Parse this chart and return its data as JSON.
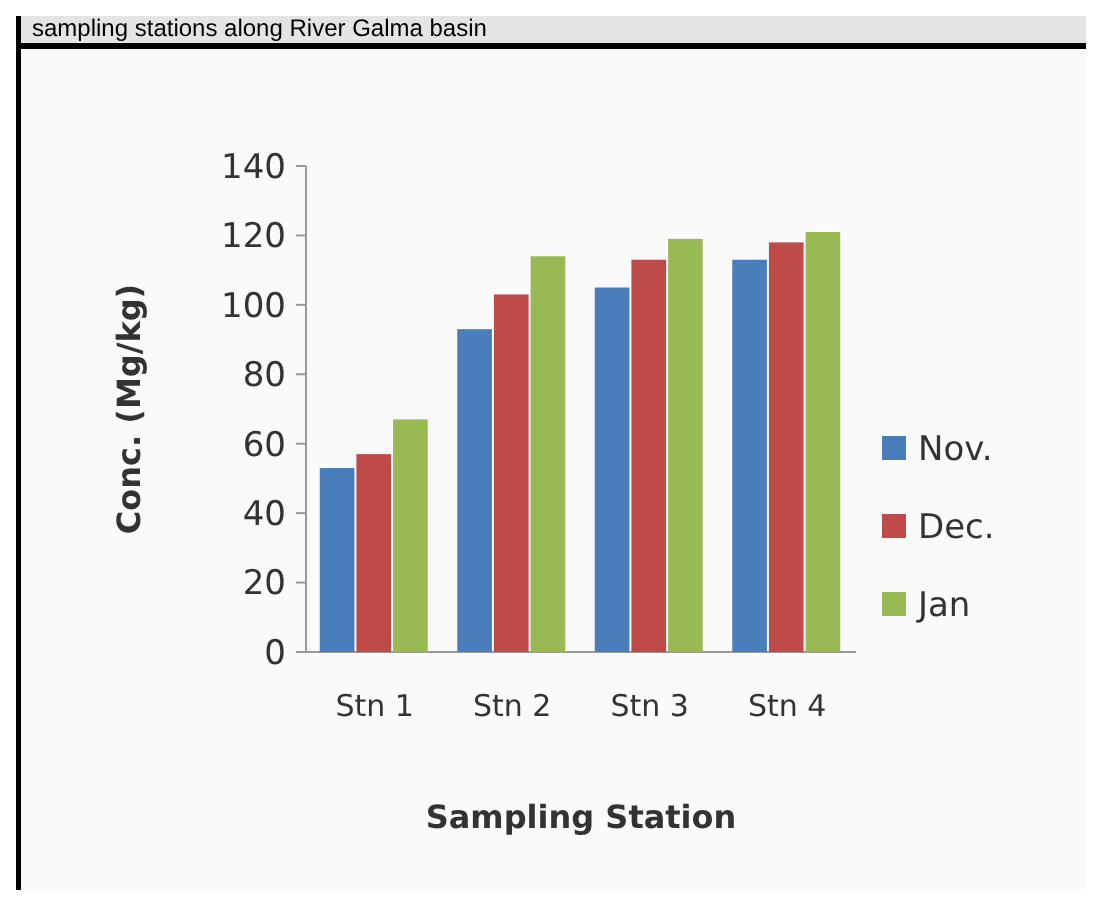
{
  "chart_data": {
    "type": "bar",
    "title": "sampling stations along River Galma basin",
    "xlabel": "Sampling Station",
    "ylabel": "Conc. (Mg/kg)",
    "categories": [
      "Stn 1",
      "Stn 2",
      "Stn 3",
      "Stn 4"
    ],
    "series": [
      {
        "name": "Nov.",
        "color": "#4a7ebb",
        "values": [
          53,
          93,
          105,
          113
        ]
      },
      {
        "name": "Dec.",
        "color": "#be4b48",
        "values": [
          57,
          103,
          113,
          118
        ]
      },
      {
        "name": "Jan",
        "color": "#98b954",
        "values": [
          67,
          114,
          119,
          121
        ]
      }
    ],
    "ylim": [
      0,
      140
    ],
    "yticks": [
      0,
      20,
      40,
      60,
      80,
      100,
      120,
      140
    ],
    "legend": "right"
  }
}
